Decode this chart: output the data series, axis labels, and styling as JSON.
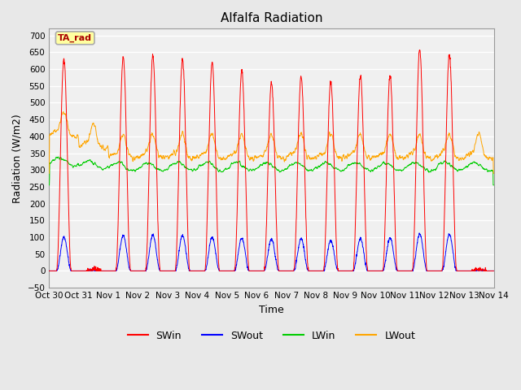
{
  "title": "Alfalfa Radiation",
  "xlabel": "Time",
  "ylabel": "Radiation (W/m2)",
  "ylim": [
    -50,
    720
  ],
  "x_tick_labels": [
    "Oct 30",
    "Oct 31",
    "Nov 1",
    "Nov 2",
    "Nov 3",
    "Nov 4",
    "Nov 5",
    "Nov 6",
    "Nov 7",
    "Nov 8",
    "Nov 9",
    "Nov 10",
    "Nov 11",
    "Nov 12",
    "Nov 13",
    "Nov 14"
  ],
  "legend_label": "TA_rad",
  "series": {
    "SWin": {
      "color": "#FF0000",
      "label": "SWin"
    },
    "SWout": {
      "color": "#0000FF",
      "label": "SWout"
    },
    "LWin": {
      "color": "#00CC00",
      "label": "LWin"
    },
    "LWout": {
      "color": "#FFA500",
      "label": "LWout"
    }
  },
  "bg_color": "#E8E8E8",
  "plot_bg_color": "#F0F0F0",
  "num_days": 15,
  "points_per_day": 144,
  "swin_peaks": [
    630,
    5,
    635,
    640,
    630,
    620,
    595,
    560,
    580,
    565,
    580,
    580,
    660,
    645,
    5
  ],
  "swout_peaks": [
    100,
    2,
    105,
    107,
    105,
    100,
    97,
    95,
    95,
    90,
    95,
    97,
    110,
    108,
    2
  ],
  "lwin_base": 310,
  "lwout_base": 345
}
